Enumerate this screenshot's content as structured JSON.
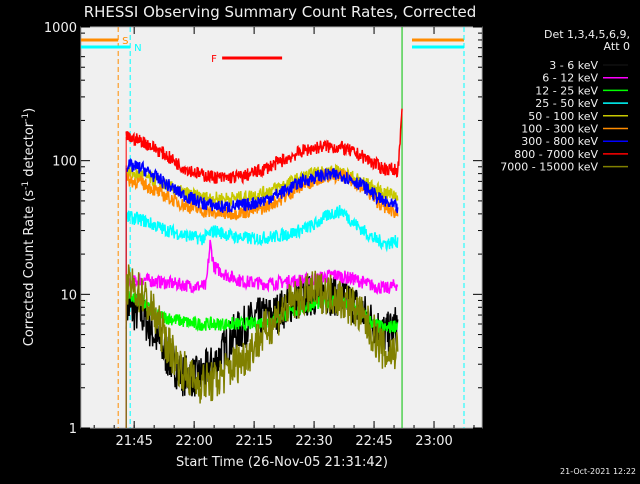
{
  "chart_data": {
    "type": "line",
    "title": "RHESSI Observing Summary Count Rates, Corrected",
    "xlabel": "Start Time (26-Nov-05 21:31:42)",
    "ylabel": "Corrected Count Rate (s",
    "ylabel_sup1": "-1",
    "ylabel_mid": " detector",
    "ylabel_sup2": "-1",
    "ylabel_end": ")",
    "yscale": "log",
    "ylim": [
      1,
      1000
    ],
    "xlim": [
      "21:31:42",
      "23:12:00"
    ],
    "x_ticks": [
      "21:45",
      "22:00",
      "22:15",
      "22:30",
      "22:45",
      "23:00"
    ],
    "y_ticks": [
      "1",
      "10",
      "100",
      "1000"
    ],
    "legend_header": [
      "Det 1,3,4,5,6,9,",
      "Att 0"
    ],
    "legend_position": "top-right",
    "timestamp": "21-Oct-2021 12:22",
    "flags": [
      {
        "label": "S",
        "color": "#ff8c00",
        "start": "21:31:42",
        "end": "21:41:00"
      },
      {
        "label": "N",
        "color": "#00ffff",
        "start": "21:31:42",
        "end": "21:44:00"
      },
      {
        "label": "F",
        "color": "#ff0000",
        "start": "22:07:00",
        "end": "22:22:00"
      }
    ],
    "series": [
      {
        "name": "3 - 6 keV",
        "color": "#000000",
        "points": [
          [
            "21:43",
            8
          ],
          [
            "21:47",
            7
          ],
          [
            "21:50",
            5
          ],
          [
            "21:53",
            3.5
          ],
          [
            "21:57",
            2.5
          ],
          [
            "22:01",
            2.4
          ],
          [
            "22:05",
            3
          ],
          [
            "22:10",
            5
          ],
          [
            "22:15",
            6.5
          ],
          [
            "22:20",
            7
          ],
          [
            "22:25",
            9
          ],
          [
            "22:30",
            10
          ],
          [
            "22:35",
            10
          ],
          [
            "22:40",
            8.5
          ],
          [
            "22:45",
            6
          ],
          [
            "22:48",
            5
          ],
          [
            "22:51",
            6
          ]
        ]
      },
      {
        "name": "6 - 12 keV",
        "color": "#ff00ff",
        "points": [
          [
            "21:43",
            12
          ],
          [
            "21:47",
            13
          ],
          [
            "21:50",
            12.5
          ],
          [
            "21:55",
            12
          ],
          [
            "22:00",
            11.5
          ],
          [
            "22:03",
            11.5
          ],
          [
            "22:04",
            24
          ],
          [
            "22:05",
            16
          ],
          [
            "22:08",
            14
          ],
          [
            "22:12",
            12.5
          ],
          [
            "22:18",
            12
          ],
          [
            "22:24",
            12.5
          ],
          [
            "22:30",
            13
          ],
          [
            "22:35",
            14
          ],
          [
            "22:40",
            13
          ],
          [
            "22:45",
            11.5
          ],
          [
            "22:48",
            11
          ],
          [
            "22:51",
            12
          ]
        ]
      },
      {
        "name": "12 - 25 keV",
        "color": "#00ff00",
        "points": [
          [
            "21:43",
            10
          ],
          [
            "21:47",
            9
          ],
          [
            "21:50",
            7
          ],
          [
            "21:55",
            6.5
          ],
          [
            "22:00",
            6
          ],
          [
            "22:05",
            6
          ],
          [
            "22:10",
            6
          ],
          [
            "22:15",
            6
          ],
          [
            "22:20",
            6.5
          ],
          [
            "22:25",
            7.5
          ],
          [
            "22:30",
            8.5
          ],
          [
            "22:35",
            9
          ],
          [
            "22:40",
            8
          ],
          [
            "22:45",
            6
          ],
          [
            "22:48",
            5.5
          ],
          [
            "22:51",
            6
          ]
        ]
      },
      {
        "name": "25 - 50 keV",
        "color": "#00ffff",
        "points": [
          [
            "21:43",
            38
          ],
          [
            "21:47",
            36
          ],
          [
            "21:52",
            31
          ],
          [
            "21:57",
            28
          ],
          [
            "22:02",
            26
          ],
          [
            "22:05",
            30
          ],
          [
            "22:10",
            27
          ],
          [
            "22:15",
            26
          ],
          [
            "22:20",
            27
          ],
          [
            "22:25",
            29
          ],
          [
            "22:30",
            33
          ],
          [
            "22:34",
            40
          ],
          [
            "22:37",
            42
          ],
          [
            "22:40",
            34
          ],
          [
            "22:45",
            26
          ],
          [
            "22:48",
            24
          ],
          [
            "22:51",
            25
          ]
        ]
      },
      {
        "name": "50 - 100 keV",
        "color": "#c8c800",
        "points": [
          [
            "21:43",
            82
          ],
          [
            "21:47",
            78
          ],
          [
            "21:52",
            67
          ],
          [
            "21:57",
            58
          ],
          [
            "22:02",
            53
          ],
          [
            "22:07",
            52
          ],
          [
            "22:12",
            53
          ],
          [
            "22:17",
            57
          ],
          [
            "22:22",
            65
          ],
          [
            "22:27",
            75
          ],
          [
            "22:32",
            83
          ],
          [
            "22:37",
            82
          ],
          [
            "22:42",
            70
          ],
          [
            "22:47",
            58
          ],
          [
            "22:51",
            55
          ]
        ]
      },
      {
        "name": "100 - 300 keV",
        "color": "#ff8c00",
        "points": [
          [
            "21:43",
            72
          ],
          [
            "21:47",
            68
          ],
          [
            "21:52",
            56
          ],
          [
            "21:57",
            47
          ],
          [
            "22:02",
            42
          ],
          [
            "22:07",
            40
          ],
          [
            "22:12",
            41
          ],
          [
            "22:17",
            44
          ],
          [
            "22:22",
            52
          ],
          [
            "22:27",
            65
          ],
          [
            "22:32",
            76
          ],
          [
            "22:37",
            77
          ],
          [
            "22:42",
            64
          ],
          [
            "22:47",
            46
          ],
          [
            "22:51",
            40
          ]
        ]
      },
      {
        "name": "300 - 800 keV",
        "color": "#0000ff",
        "points": [
          [
            "21:43",
            92
          ],
          [
            "21:47",
            88
          ],
          [
            "21:52",
            70
          ],
          [
            "21:57",
            56
          ],
          [
            "22:02",
            48
          ],
          [
            "22:07",
            45
          ],
          [
            "22:12",
            46
          ],
          [
            "22:17",
            50
          ],
          [
            "22:22",
            58
          ],
          [
            "22:27",
            70
          ],
          [
            "22:32",
            78
          ],
          [
            "22:37",
            78
          ],
          [
            "22:42",
            66
          ],
          [
            "22:47",
            50
          ],
          [
            "22:51",
            44
          ]
        ]
      },
      {
        "name": "800 - 7000 keV",
        "color": "#ff0000",
        "points": [
          [
            "21:43",
            150
          ],
          [
            "21:47",
            140
          ],
          [
            "21:52",
            115
          ],
          [
            "21:57",
            90
          ],
          [
            "22:02",
            78
          ],
          [
            "22:07",
            74
          ],
          [
            "22:12",
            76
          ],
          [
            "22:17",
            85
          ],
          [
            "22:22",
            100
          ],
          [
            "22:27",
            118
          ],
          [
            "22:32",
            128
          ],
          [
            "22:37",
            125
          ],
          [
            "22:42",
            108
          ],
          [
            "22:47",
            88
          ],
          [
            "22:51",
            85
          ],
          [
            "22:52",
            220
          ]
        ]
      },
      {
        "name": "7000 - 15000 keV",
        "color": "#808000",
        "points": [
          [
            "21:43",
            12
          ],
          [
            "21:47",
            10
          ],
          [
            "21:50",
            7
          ],
          [
            "21:53",
            4.5
          ],
          [
            "21:56",
            3
          ],
          [
            "22:00",
            2.2
          ],
          [
            "22:05",
            2.2
          ],
          [
            "22:09",
            2.8
          ],
          [
            "22:13",
            3.5
          ],
          [
            "22:17",
            5
          ],
          [
            "22:21",
            7
          ],
          [
            "22:25",
            9
          ],
          [
            "22:30",
            10.5
          ],
          [
            "22:35",
            10
          ],
          [
            "22:40",
            8
          ],
          [
            "22:45",
            5
          ],
          [
            "22:48",
            3.5
          ],
          [
            "22:51",
            4
          ]
        ]
      }
    ]
  }
}
